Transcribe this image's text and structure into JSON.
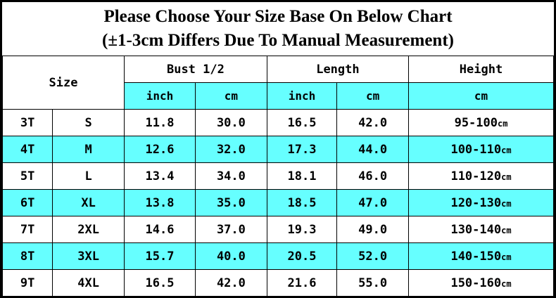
{
  "colors": {
    "accent": "#66FFFF",
    "grid": "#000000",
    "background": "#FFFFFF"
  },
  "title": {
    "line1": "Please Choose Your Size Base On Below Chart",
    "line2": "(±1-3cm Differs Due To Manual Measurement)"
  },
  "table": {
    "header": {
      "size": "Size",
      "bust": "Bust 1/2",
      "length": "Length",
      "height": "Height",
      "units": [
        "inch",
        "cm",
        "inch",
        "cm",
        "cm"
      ]
    },
    "rows": [
      {
        "size_t": "3T",
        "size_letter": "S",
        "bust_inch": "11.8",
        "bust_cm": "30.0",
        "length_inch": "16.5",
        "length_cm": "42.0",
        "height_range": "95-100",
        "height_unit": "cm"
      },
      {
        "size_t": "4T",
        "size_letter": "M",
        "bust_inch": "12.6",
        "bust_cm": "32.0",
        "length_inch": "17.3",
        "length_cm": "44.0",
        "height_range": "100-110",
        "height_unit": "cm"
      },
      {
        "size_t": "5T",
        "size_letter": "L",
        "bust_inch": "13.4",
        "bust_cm": "34.0",
        "length_inch": "18.1",
        "length_cm": "46.0",
        "height_range": "110-120",
        "height_unit": "cm"
      },
      {
        "size_t": "6T",
        "size_letter": "XL",
        "bust_inch": "13.8",
        "bust_cm": "35.0",
        "length_inch": "18.5",
        "length_cm": "47.0",
        "height_range": "120-130",
        "height_unit": "cm"
      },
      {
        "size_t": "7T",
        "size_letter": "2XL",
        "bust_inch": "14.6",
        "bust_cm": "37.0",
        "length_inch": "19.3",
        "length_cm": "49.0",
        "height_range": "130-140",
        "height_unit": "cm"
      },
      {
        "size_t": "8T",
        "size_letter": "3XL",
        "bust_inch": "15.7",
        "bust_cm": "40.0",
        "length_inch": "20.5",
        "length_cm": "52.0",
        "height_range": "140-150",
        "height_unit": "cm"
      },
      {
        "size_t": "9T",
        "size_letter": "4XL",
        "bust_inch": "16.5",
        "bust_cm": "42.0",
        "length_inch": "21.6",
        "length_cm": "55.0",
        "height_range": "150-160",
        "height_unit": "cm"
      }
    ],
    "highlighted_rows_cyan": [
      "4T",
      "6T",
      "8T"
    ]
  },
  "chart_data": {
    "type": "table",
    "title": "Please Choose Your Size Base On Below Chart (±1-3cm Differs Due To Manual Measurement)",
    "columns": [
      "Size (age)",
      "Size (letter)",
      "Bust 1/2 inch",
      "Bust 1/2 cm",
      "Length inch",
      "Length cm",
      "Height cm"
    ],
    "rows": [
      [
        "3T",
        "S",
        "11.8",
        "30.0",
        "16.5",
        "42.0",
        "95-100cm"
      ],
      [
        "4T",
        "M",
        "12.6",
        "32.0",
        "17.3",
        "44.0",
        "100-110cm"
      ],
      [
        "5T",
        "L",
        "13.4",
        "34.0",
        "18.1",
        "46.0",
        "110-120cm"
      ],
      [
        "6T",
        "XL",
        "13.8",
        "35.0",
        "18.5",
        "47.0",
        "120-130cm"
      ],
      [
        "7T",
        "2XL",
        "14.6",
        "37.0",
        "19.3",
        "49.0",
        "130-140cm"
      ],
      [
        "8T",
        "3XL",
        "15.7",
        "40.0",
        "20.5",
        "52.0",
        "140-150cm"
      ],
      [
        "9T",
        "4XL",
        "16.5",
        "42.0",
        "21.6",
        "55.0",
        "150-160cm"
      ]
    ]
  }
}
